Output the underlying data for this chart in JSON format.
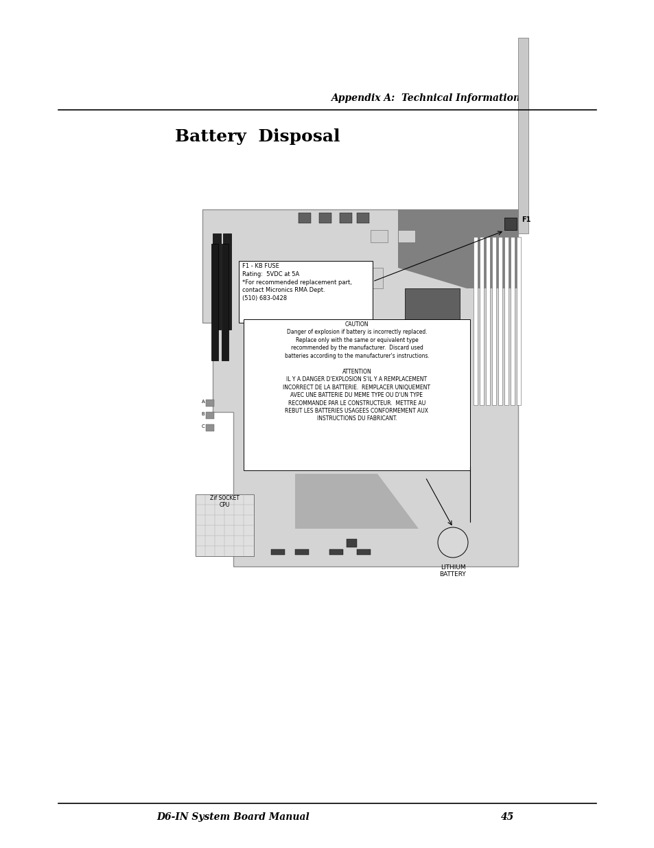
{
  "page_bg": "#ffffff",
  "header_text": "Appendix A:  Technical Information",
  "header_fontsize": 10,
  "header_style": "italic",
  "header_weight": "bold",
  "title_text": "Battery  Disposal",
  "title_fontsize": 18,
  "title_weight": "bold",
  "footer_left_text": "D6-IN System Board Manual",
  "footer_right_text": "45",
  "footer_fontsize": 10,
  "footer_style": "italic",
  "footer_weight": "bold",
  "caution_box_text": "CAUTION\nDanger of explosion if battery is incorrectly replaced.\nReplace only with the same or equivalent type\nrecommended by the manufacturer.  Discard used\nbatteries according to the manufacturer's instructions.\n\nATTENTION\nIL Y A DANGER D'EXPLOSION S'IL Y A REMPLACEMENT\nINCORRECT DE LA BATTERIE.  REMPLACER UNIQUEMENT\nAVEC UNE BATTERIE DU MEME TYPE OU D'UN TYPE\nRECOMMANDE PAR LE CONSTRUCTEUR.  METTRE AU\nREBUT LES BATTERIES USAGEES CONFORMEMENT AUX\nINSTRUCTIONS DU FABRICANT.",
  "fuse_box_text": "F1 - KB FUSE\nRating:  5VDC at 5A\n*For recommended replacement part,\ncontact Micronics RMA Dept.\n(510) 683-0428",
  "lithium_text": "LITHIUM\nBATTERY",
  "f1_label": "F1"
}
